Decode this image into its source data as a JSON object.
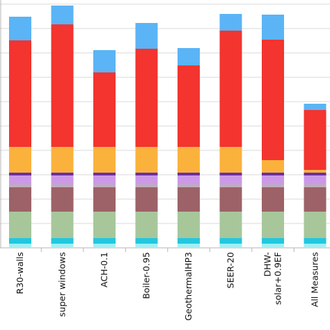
{
  "chart_data": {
    "type": "bar",
    "stacked": true,
    "categories": [
      "R30-walls",
      "super windows",
      "ACH-0.1",
      "Boiler-0.95",
      "GeothermalHP3",
      "SEER-20",
      "DHW-solar+0.9EF",
      "All Measures"
    ],
    "category_lines": [
      [
        "R30-walls"
      ],
      [
        "super windows"
      ],
      [
        "ACH-0.1"
      ],
      [
        "Boiler-0.95"
      ],
      [
        "GeothermalHP3"
      ],
      [
        "SEER-20"
      ],
      [
        "DHW-",
        "solar+0.9EF"
      ],
      [
        "All Measures"
      ]
    ],
    "grid": true,
    "ylim": [
      0,
      17.5
    ],
    "series": [
      {
        "color": "#9ff0f3",
        "values": [
          0.3,
          0.3,
          0.3,
          0.3,
          0.3,
          0.3,
          0.3,
          0.3
        ]
      },
      {
        "color": "#22c7e0",
        "values": [
          0.4,
          0.4,
          0.4,
          0.4,
          0.4,
          0.4,
          0.4,
          0.4
        ]
      },
      {
        "color": "#a7c79b",
        "values": [
          1.9,
          1.9,
          1.9,
          1.9,
          1.9,
          1.9,
          1.9,
          1.9
        ]
      },
      {
        "color": "#9c6268",
        "values": [
          1.75,
          1.75,
          1.75,
          1.75,
          1.75,
          1.75,
          1.75,
          1.75
        ]
      },
      {
        "color": "#bab0b4",
        "values": [
          0.2,
          0.2,
          0.2,
          0.2,
          0.2,
          0.2,
          0.2,
          0.2
        ]
      },
      {
        "color": "#cc99e8",
        "values": [
          0.65,
          0.65,
          0.65,
          0.65,
          0.65,
          0.65,
          0.65,
          0.65
        ]
      },
      {
        "color": "#6a2fa6",
        "values": [
          0.2,
          0.2,
          0.2,
          0.2,
          0.2,
          0.2,
          0.2,
          0.2
        ]
      },
      {
        "color": "#fbb23c",
        "values": [
          1.85,
          1.85,
          1.85,
          1.85,
          1.85,
          1.85,
          0.9,
          0.2
        ]
      },
      {
        "color": "#f3342f",
        "values": [
          7.65,
          8.8,
          5.35,
          7.05,
          5.85,
          8.35,
          8.65,
          4.3
        ]
      },
      {
        "color": "#5bb4f5",
        "values": [
          1.7,
          1.35,
          1.6,
          1.85,
          1.25,
          1.2,
          1.8,
          0.45
        ]
      }
    ]
  }
}
